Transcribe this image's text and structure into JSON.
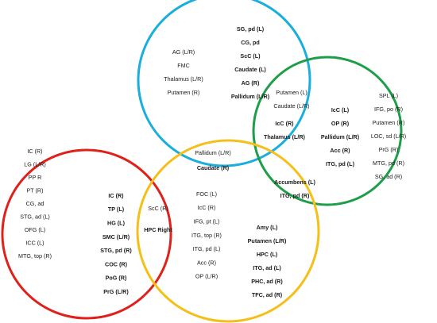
{
  "groups": [
    {
      "items": [
        "AG (L/R)",
        "FMC",
        "Thalamus (L/R)",
        "Putamen (R)"
      ]
    },
    {
      "items": [
        "SG, pd (L)",
        "CG, pd",
        "ScC (L)",
        "Caudate (L)",
        "AG (R)",
        "Pallidum (L/R)"
      ]
    },
    {
      "items": [
        "Putamen (L)",
        "Caudate (L/R)"
      ]
    },
    {
      "items": [
        "IcC (R)",
        "Thalamus (L/R)"
      ]
    },
    {
      "items": [
        "IcC (L)",
        "OP (R)",
        "Pallidum (L/R)",
        "Acc (R)",
        "ITG, pd (L)"
      ]
    },
    {
      "items": [
        "SPL (L)",
        "IFG, po (R)",
        "Putamen (R)",
        "LOC, sd (L/R)",
        "PrG (R)",
        "MTG, pd (R)",
        "SG, ad (R)"
      ]
    },
    {
      "items": [
        "Accumbens (L)",
        "ITG, pd (R)"
      ]
    },
    {
      "items": [
        "Pallidum (L/R)"
      ]
    },
    {
      "items": [
        "Caudate (R)"
      ]
    },
    {
      "items": [
        "IC (R)",
        "LG (L/R)",
        "PP R",
        "PT (R)",
        "CG, ad",
        "STG, ad (L)",
        "OFG (L)",
        "ICC (L)",
        "MTG, top (R)"
      ]
    },
    {
      "items": [
        "IC (R)",
        "TP (L)",
        "HG (L)",
        "SMC (L/R)",
        "STG, pd (R)",
        "COC (R)",
        "PoG (R)",
        "PrG (L/R)"
      ]
    },
    {
      "items": [
        "ScC (R)"
      ]
    },
    {
      "items": [
        "HPC Right"
      ]
    },
    {
      "items": [
        "FOC (L)",
        "IcC (R)",
        "IFG, pt (L)",
        "ITG, top (R)",
        "ITG, pd (L)",
        "Acc (R)",
        "OP (L/R)"
      ]
    },
    {
      "items": [
        "Amy (L)",
        "Putamen (L/R)",
        "HPC (L)",
        "ITG, ad (L)",
        "PHC, ad (R)",
        "TFC, ad (R)"
      ]
    }
  ]
}
